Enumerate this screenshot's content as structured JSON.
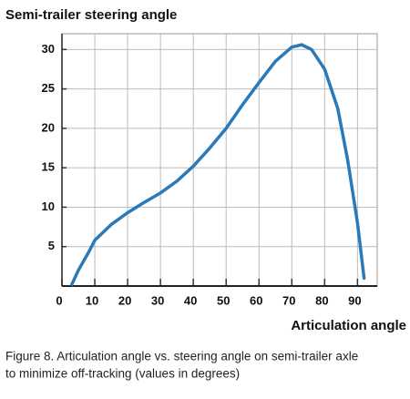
{
  "chart_data": {
    "type": "line",
    "y_label": "Semi-trailer steering angle",
    "x_label": "Articulation angle",
    "caption": [
      "Figure 8. Articulation angle vs. steering angle on semi-trailer axle",
      "to minimize off-tracking (values in degrees)"
    ],
    "x": [
      3,
      5,
      8,
      10,
      15,
      20,
      25,
      30,
      35,
      40,
      45,
      50,
      55,
      60,
      65,
      70,
      73,
      76,
      80,
      84,
      87,
      90,
      92
    ],
    "series": [
      {
        "color": "#2a79b8",
        "values": [
          0.2,
          2,
          4.2,
          5.8,
          7.8,
          9.3,
          10.6,
          11.8,
          13.3,
          15.2,
          17.5,
          20,
          23,
          25.8,
          28.5,
          30.3,
          30.6,
          30,
          27.5,
          22.5,
          16,
          8,
          1
        ]
      }
    ],
    "xlim": [
      0,
      96
    ],
    "ylim": [
      0,
      32
    ],
    "xticks": [
      0,
      10,
      20,
      30,
      40,
      50,
      60,
      70,
      80,
      90
    ],
    "yticks": [
      5,
      10,
      15,
      20,
      25,
      30
    ],
    "grid": true
  }
}
